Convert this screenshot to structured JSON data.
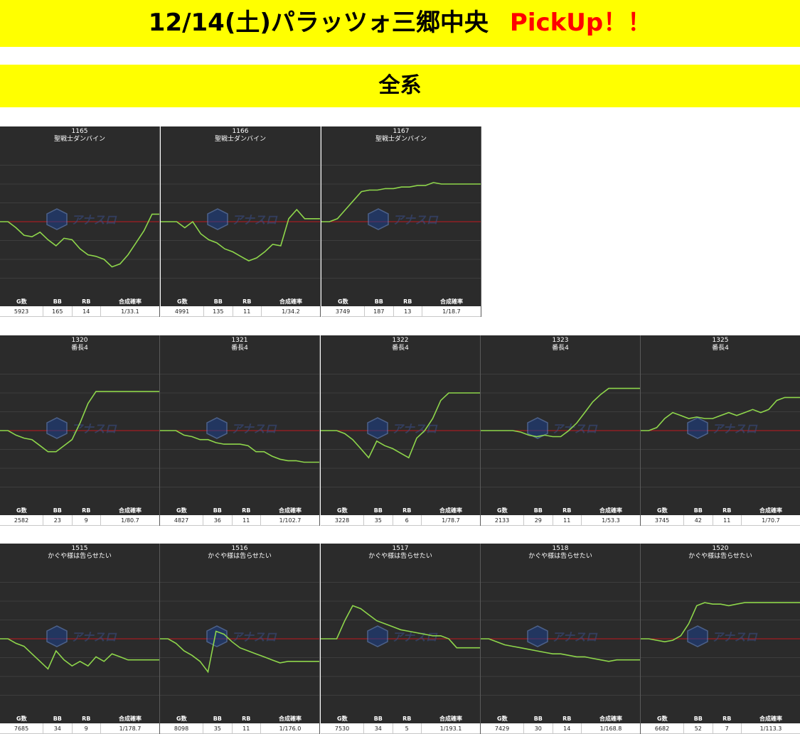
{
  "header": {
    "title": "12/14(土)パラッツォ三郷中央",
    "pickup": "PickUp！！",
    "category": "全系"
  },
  "stat_headers": [
    "G数",
    "BB",
    "RB",
    "合成確率"
  ],
  "logo_text": "アナスロ",
  "colors": {
    "banner": "#ffff00",
    "pickup": "#ff0000",
    "panel_bg": "#2b2b2b",
    "line": "#8ed64b",
    "baseline": "#c0191f"
  },
  "machines": [
    {
      "id": "1165",
      "name": "聖戦士ダンバイン",
      "games": "5923",
      "bb": "165",
      "rb": "14",
      "rate": "1/33.1",
      "chart_data": {
        "type": "line",
        "values": [
          50,
          50,
          46,
          41,
          40,
          43,
          38,
          34,
          39,
          38,
          32,
          28,
          27,
          25,
          20,
          22,
          28,
          36,
          44,
          55,
          55
        ]
      }
    },
    {
      "id": "1166",
      "name": "聖戦士ダンバイン",
      "games": "4991",
      "bb": "135",
      "rb": "11",
      "rate": "1/34.2",
      "chart_data": {
        "type": "line",
        "values": [
          50,
          50,
          50,
          46,
          50,
          42,
          38,
          36,
          32,
          30,
          27,
          24,
          26,
          30,
          35,
          34,
          52,
          58,
          52,
          52,
          52
        ]
      }
    },
    {
      "id": "1167",
      "name": "聖戦士ダンバイン",
      "games": "3749",
      "bb": "187",
      "rb": "13",
      "rate": "1/18.7",
      "chart_data": {
        "type": "line",
        "values": [
          50,
          50,
          52,
          58,
          64,
          70,
          71,
          71,
          72,
          72,
          73,
          73,
          74,
          74,
          76,
          75,
          75,
          75,
          75,
          75,
          75
        ]
      }
    },
    {
      "id": "1320",
      "name": "番長4",
      "games": "2582",
      "bb": "23",
      "rb": "9",
      "rate": "1/80.7",
      "chart_data": {
        "type": "line",
        "values": [
          50,
          50,
          47,
          45,
          44,
          40,
          36,
          36,
          40,
          44,
          55,
          68,
          76,
          76,
          76,
          76,
          76,
          76,
          76,
          76,
          76
        ]
      }
    },
    {
      "id": "1321",
      "name": "番長4",
      "games": "4827",
      "bb": "36",
      "rb": "11",
      "rate": "1/102.7",
      "chart_data": {
        "type": "line",
        "values": [
          50,
          50,
          50,
          47,
          46,
          44,
          44,
          42,
          41,
          41,
          41,
          40,
          36,
          36,
          33,
          31,
          30,
          30,
          29,
          29,
          29
        ]
      }
    },
    {
      "id": "1322",
      "name": "番長4",
      "games": "3228",
      "bb": "35",
      "rb": "6",
      "rate": "1/78.7",
      "chart_data": {
        "type": "line",
        "values": [
          50,
          50,
          50,
          48,
          44,
          38,
          32,
          43,
          40,
          38,
          35,
          32,
          45,
          50,
          58,
          70,
          75,
          75,
          75,
          75,
          75
        ]
      }
    },
    {
      "id": "1323",
      "name": "番長4",
      "games": "2133",
      "bb": "29",
      "rb": "11",
      "rate": "1/53.3",
      "chart_data": {
        "type": "line",
        "values": [
          50,
          50,
          50,
          50,
          50,
          49,
          47,
          46,
          47,
          46,
          46,
          50,
          55,
          62,
          69,
          74,
          78,
          78,
          78,
          78,
          78
        ]
      }
    },
    {
      "id": "1325",
      "name": "番長4",
      "games": "3745",
      "bb": "42",
      "rb": "11",
      "rate": "1/70.7",
      "chart_data": {
        "type": "line",
        "values": [
          50,
          50,
          52,
          58,
          62,
          60,
          58,
          59,
          58,
          58,
          60,
          62,
          60,
          62,
          64,
          62,
          64,
          70,
          72,
          72,
          72
        ]
      }
    },
    {
      "id": "1515",
      "name": "かぐや様は告らせたい",
      "games": "7685",
      "bb": "34",
      "rb": "9",
      "rate": "1/178.7",
      "chart_data": {
        "type": "line",
        "values": [
          50,
          50,
          47,
          45,
          40,
          35,
          30,
          42,
          36,
          32,
          35,
          32,
          38,
          35,
          40,
          38,
          36,
          36,
          36,
          36,
          36
        ]
      }
    },
    {
      "id": "1516",
      "name": "かぐや様は告らせたい",
      "games": "8098",
      "bb": "35",
      "rb": "11",
      "rate": "1/176.0",
      "chart_data": {
        "type": "line",
        "values": [
          50,
          50,
          47,
          42,
          39,
          35,
          28,
          55,
          53,
          48,
          44,
          42,
          40,
          38,
          36,
          34,
          35,
          35,
          35,
          35,
          35
        ]
      }
    },
    {
      "id": "1517",
      "name": "かぐや様は告らせたい",
      "games": "7530",
      "bb": "34",
      "rb": "5",
      "rate": "1/193.1",
      "chart_data": {
        "type": "line",
        "values": [
          50,
          50,
          50,
          62,
          72,
          70,
          66,
          62,
          60,
          58,
          56,
          55,
          54,
          53,
          52,
          52,
          50,
          44,
          44,
          44,
          44
        ]
      }
    },
    {
      "id": "1518",
      "name": "かぐや様は告らせたい",
      "games": "7429",
      "bb": "30",
      "rb": "14",
      "rate": "1/168.8",
      "chart_data": {
        "type": "line",
        "values": [
          50,
          50,
          48,
          46,
          45,
          44,
          43,
          42,
          41,
          40,
          40,
          39,
          38,
          38,
          37,
          36,
          35,
          36,
          36,
          36,
          36
        ]
      }
    },
    {
      "id": "1520",
      "name": "かぐや様は告らせたい",
      "games": "6682",
      "bb": "52",
      "rb": "7",
      "rate": "1/113.3",
      "chart_data": {
        "type": "line",
        "values": [
          50,
          50,
          49,
          48,
          49,
          52,
          60,
          72,
          74,
          73,
          73,
          72,
          73,
          74,
          74,
          74,
          74,
          74,
          74,
          74,
          74
        ]
      }
    }
  ]
}
